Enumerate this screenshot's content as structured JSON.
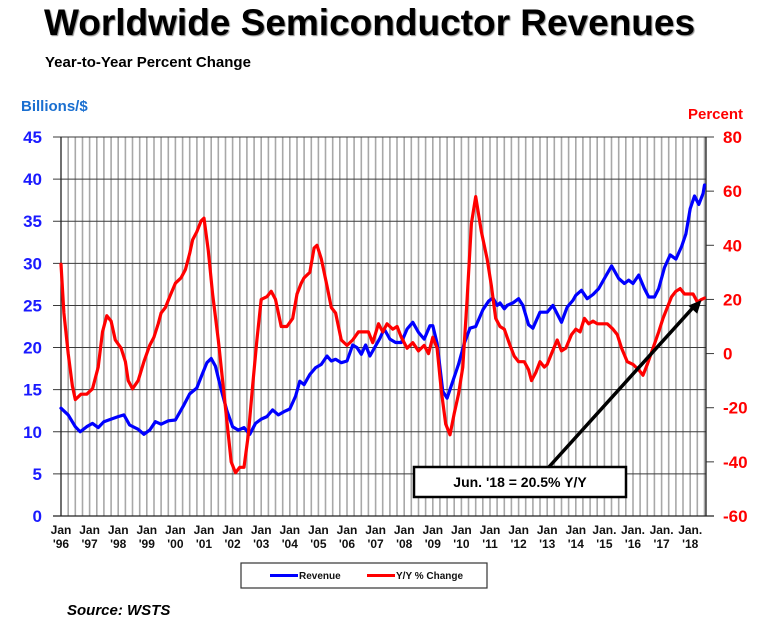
{
  "chart_data": {
    "type": "line",
    "title": "Worldwide Semiconductor Revenues",
    "subtitle": "Year-to-Year Percent Change",
    "ylabel_left": "Billions/$",
    "ylabel_right": "Percent",
    "ylim_left": [
      0,
      45
    ],
    "ylim_right": [
      -60,
      80
    ],
    "yticks_left": [
      "0",
      "5",
      "10",
      "15",
      "20",
      "25",
      "30",
      "35",
      "40",
      "45"
    ],
    "yticks_right": [
      "-60",
      "-40",
      "-20",
      "0",
      "20",
      "40",
      "60",
      "80"
    ],
    "xlim": [
      1996.0,
      2018.5
    ],
    "xticks": [
      {
        "line1": "Jan",
        "line2": "'96",
        "x": 1996
      },
      {
        "line1": "Jan",
        "line2": "'97",
        "x": 1997
      },
      {
        "line1": "Jan",
        "line2": "'98",
        "x": 1998
      },
      {
        "line1": "Jan",
        "line2": "'99",
        "x": 1999
      },
      {
        "line1": "Jan",
        "line2": "'00",
        "x": 2000
      },
      {
        "line1": "Jan",
        "line2": "'01",
        "x": 2001
      },
      {
        "line1": "Jan",
        "line2": "'02",
        "x": 2002
      },
      {
        "line1": "Jan",
        "line2": "'03",
        "x": 2003
      },
      {
        "line1": "Jan",
        "line2": "'04",
        "x": 2004
      },
      {
        "line1": "Jan",
        "line2": "'05",
        "x": 2005
      },
      {
        "line1": "Jan",
        "line2": "'06",
        "x": 2006
      },
      {
        "line1": "Jan",
        "line2": "'07",
        "x": 2007
      },
      {
        "line1": "Jan",
        "line2": "'08",
        "x": 2008
      },
      {
        "line1": "Jan",
        "line2": "'09",
        "x": 2009
      },
      {
        "line1": "Jan",
        "line2": "'10",
        "x": 2010
      },
      {
        "line1": "Jan",
        "line2": "'11",
        "x": 2011
      },
      {
        "line1": "Jan",
        "line2": "'12",
        "x": 2012
      },
      {
        "line1": "Jan",
        "line2": "'13",
        "x": 2013
      },
      {
        "line1": "Jan",
        "line2": "'14",
        "x": 2014
      },
      {
        "line1": "Jan.",
        "line2": "'15",
        "x": 2015
      },
      {
        "line1": "Jan.",
        "line2": "'16",
        "x": 2016
      },
      {
        "line1": "Jan.",
        "line2": "'17",
        "x": 2017
      },
      {
        "line1": "Jan.",
        "line2": "'18",
        "x": 2018
      }
    ],
    "grid": true,
    "legend_position": "bottom-center",
    "series": [
      {
        "name": "Revenue",
        "axis": "left",
        "color": "#0000ff",
        "points": [
          [
            1996.0,
            12.8
          ],
          [
            1996.25,
            12.0
          ],
          [
            1996.5,
            10.6
          ],
          [
            1996.67,
            10.0
          ],
          [
            1996.9,
            10.6
          ],
          [
            1997.1,
            11.0
          ],
          [
            1997.3,
            10.5
          ],
          [
            1997.5,
            11.2
          ],
          [
            1997.75,
            11.5
          ],
          [
            1998.0,
            11.8
          ],
          [
            1998.2,
            12.0
          ],
          [
            1998.4,
            10.8
          ],
          [
            1998.7,
            10.3
          ],
          [
            1998.9,
            9.7
          ],
          [
            1999.1,
            10.2
          ],
          [
            1999.3,
            11.2
          ],
          [
            1999.5,
            10.9
          ],
          [
            1999.75,
            11.3
          ],
          [
            2000.0,
            11.4
          ],
          [
            2000.3,
            13.2
          ],
          [
            2000.5,
            14.5
          ],
          [
            2000.75,
            15.2
          ],
          [
            2000.9,
            16.5
          ],
          [
            2001.1,
            18.2
          ],
          [
            2001.25,
            18.7
          ],
          [
            2001.4,
            17.8
          ],
          [
            2001.6,
            15.0
          ],
          [
            2001.8,
            12.5
          ],
          [
            2002.0,
            10.6
          ],
          [
            2002.2,
            10.2
          ],
          [
            2002.4,
            10.5
          ],
          [
            2002.6,
            9.7
          ],
          [
            2002.8,
            11.0
          ],
          [
            2003.0,
            11.5
          ],
          [
            2003.2,
            11.8
          ],
          [
            2003.4,
            12.6
          ],
          [
            2003.6,
            12.0
          ],
          [
            2003.8,
            12.4
          ],
          [
            2004.0,
            12.7
          ],
          [
            2004.2,
            14.2
          ],
          [
            2004.35,
            16.0
          ],
          [
            2004.5,
            15.6
          ],
          [
            2004.7,
            16.8
          ],
          [
            2004.9,
            17.6
          ],
          [
            2005.1,
            18.0
          ],
          [
            2005.3,
            19.0
          ],
          [
            2005.45,
            18.4
          ],
          [
            2005.6,
            18.6
          ],
          [
            2005.8,
            18.2
          ],
          [
            2006.0,
            18.4
          ],
          [
            2006.2,
            20.3
          ],
          [
            2006.35,
            20.0
          ],
          [
            2006.5,
            19.2
          ],
          [
            2006.65,
            20.3
          ],
          [
            2006.8,
            19.0
          ],
          [
            2007.0,
            20.2
          ],
          [
            2007.15,
            21.1
          ],
          [
            2007.3,
            22.2
          ],
          [
            2007.5,
            21.0
          ],
          [
            2007.7,
            20.6
          ],
          [
            2007.9,
            20.6
          ],
          [
            2008.1,
            22.2
          ],
          [
            2008.3,
            23.0
          ],
          [
            2008.5,
            21.8
          ],
          [
            2008.7,
            21.0
          ],
          [
            2008.9,
            22.6
          ],
          [
            2009.0,
            22.6
          ],
          [
            2009.15,
            20.5
          ],
          [
            2009.35,
            14.8
          ],
          [
            2009.5,
            14.0
          ],
          [
            2009.7,
            16.0
          ],
          [
            2009.9,
            18.0
          ],
          [
            2010.1,
            20.5
          ],
          [
            2010.3,
            22.3
          ],
          [
            2010.5,
            22.5
          ],
          [
            2010.75,
            24.5
          ],
          [
            2010.95,
            25.5
          ],
          [
            2011.1,
            25.9
          ],
          [
            2011.25,
            25.0
          ],
          [
            2011.35,
            25.3
          ],
          [
            2011.5,
            24.6
          ],
          [
            2011.6,
            25.0
          ],
          [
            2011.8,
            25.3
          ],
          [
            2012.0,
            25.8
          ],
          [
            2012.15,
            25.0
          ],
          [
            2012.35,
            22.7
          ],
          [
            2012.5,
            22.3
          ],
          [
            2012.75,
            24.2
          ],
          [
            2013.0,
            24.2
          ],
          [
            2013.2,
            25.0
          ],
          [
            2013.35,
            24.0
          ],
          [
            2013.5,
            23.0
          ],
          [
            2013.7,
            24.8
          ],
          [
            2013.9,
            25.6
          ],
          [
            2014.0,
            26.2
          ],
          [
            2014.2,
            26.8
          ],
          [
            2014.4,
            25.8
          ],
          [
            2014.6,
            26.3
          ],
          [
            2014.8,
            27.0
          ],
          [
            2015.0,
            28.2
          ],
          [
            2015.25,
            29.7
          ],
          [
            2015.5,
            28.2
          ],
          [
            2015.7,
            27.6
          ],
          [
            2015.85,
            28.0
          ],
          [
            2016.0,
            27.6
          ],
          [
            2016.2,
            28.6
          ],
          [
            2016.4,
            27.0
          ],
          [
            2016.55,
            26.0
          ],
          [
            2016.75,
            26.0
          ],
          [
            2016.9,
            27.0
          ],
          [
            2017.1,
            29.5
          ],
          [
            2017.3,
            31.0
          ],
          [
            2017.5,
            30.5
          ],
          [
            2017.7,
            32.0
          ],
          [
            2017.85,
            33.5
          ],
          [
            2018.0,
            36.5
          ],
          [
            2018.15,
            38.0
          ],
          [
            2018.3,
            37.0
          ],
          [
            2018.45,
            38.3
          ],
          [
            2018.5,
            39.3
          ]
        ]
      },
      {
        "name": "Y/Y % Change",
        "axis": "right",
        "color": "#ff0000",
        "points": [
          [
            1996.0,
            33
          ],
          [
            1996.1,
            15
          ],
          [
            1996.25,
            0
          ],
          [
            1996.4,
            -12
          ],
          [
            1996.5,
            -17
          ],
          [
            1996.7,
            -15
          ],
          [
            1996.9,
            -15
          ],
          [
            1997.1,
            -13
          ],
          [
            1997.3,
            -5
          ],
          [
            1997.45,
            8
          ],
          [
            1997.6,
            14
          ],
          [
            1997.75,
            12
          ],
          [
            1997.9,
            5
          ],
          [
            1998.1,
            2
          ],
          [
            1998.25,
            -3
          ],
          [
            1998.35,
            -10
          ],
          [
            1998.5,
            -13
          ],
          [
            1998.7,
            -10
          ],
          [
            1998.9,
            -3
          ],
          [
            1999.1,
            3
          ],
          [
            1999.25,
            6
          ],
          [
            1999.4,
            11
          ],
          [
            1999.5,
            15
          ],
          [
            1999.65,
            17
          ],
          [
            1999.8,
            21
          ],
          [
            2000.0,
            26
          ],
          [
            2000.2,
            28
          ],
          [
            2000.35,
            31
          ],
          [
            2000.5,
            37
          ],
          [
            2000.6,
            42
          ],
          [
            2000.75,
            45
          ],
          [
            2000.9,
            49
          ],
          [
            2001.0,
            50
          ],
          [
            2001.15,
            38
          ],
          [
            2001.3,
            22
          ],
          [
            2001.5,
            5
          ],
          [
            2001.65,
            -10
          ],
          [
            2001.8,
            -25
          ],
          [
            2001.95,
            -40
          ],
          [
            2002.1,
            -44
          ],
          [
            2002.25,
            -42
          ],
          [
            2002.4,
            -42
          ],
          [
            2002.55,
            -30
          ],
          [
            2002.7,
            -12
          ],
          [
            2002.85,
            5
          ],
          [
            2003.0,
            20
          ],
          [
            2003.2,
            21
          ],
          [
            2003.35,
            23
          ],
          [
            2003.5,
            20
          ],
          [
            2003.7,
            10
          ],
          [
            2003.9,
            10
          ],
          [
            2004.1,
            13
          ],
          [
            2004.25,
            22
          ],
          [
            2004.4,
            26
          ],
          [
            2004.5,
            28
          ],
          [
            2004.7,
            30
          ],
          [
            2004.85,
            39
          ],
          [
            2004.95,
            40
          ],
          [
            2005.1,
            35
          ],
          [
            2005.3,
            25
          ],
          [
            2005.45,
            17
          ],
          [
            2005.6,
            15
          ],
          [
            2005.8,
            5
          ],
          [
            2006.0,
            3
          ],
          [
            2006.2,
            5
          ],
          [
            2006.4,
            8
          ],
          [
            2006.6,
            8
          ],
          [
            2006.75,
            8
          ],
          [
            2006.9,
            4
          ],
          [
            2007.1,
            11
          ],
          [
            2007.25,
            8
          ],
          [
            2007.4,
            11
          ],
          [
            2007.6,
            9
          ],
          [
            2007.75,
            10
          ],
          [
            2007.9,
            6
          ],
          [
            2008.1,
            2
          ],
          [
            2008.3,
            4
          ],
          [
            2008.5,
            1
          ],
          [
            2008.7,
            3
          ],
          [
            2008.85,
            0
          ],
          [
            2009.0,
            6
          ],
          [
            2009.15,
            2
          ],
          [
            2009.3,
            -14
          ],
          [
            2009.45,
            -26
          ],
          [
            2009.6,
            -30
          ],
          [
            2009.75,
            -22
          ],
          [
            2009.9,
            -15
          ],
          [
            2010.05,
            -5
          ],
          [
            2010.2,
            20
          ],
          [
            2010.35,
            48
          ],
          [
            2010.5,
            58
          ],
          [
            2010.7,
            45
          ],
          [
            2010.9,
            35
          ],
          [
            2011.05,
            25
          ],
          [
            2011.2,
            13
          ],
          [
            2011.35,
            10
          ],
          [
            2011.5,
            9
          ],
          [
            2011.7,
            3
          ],
          [
            2011.85,
            -1
          ],
          [
            2012.0,
            -3
          ],
          [
            2012.2,
            -3
          ],
          [
            2012.35,
            -6
          ],
          [
            2012.45,
            -10
          ],
          [
            2012.6,
            -7
          ],
          [
            2012.75,
            -3
          ],
          [
            2012.9,
            -5
          ],
          [
            2013.0,
            -4
          ],
          [
            2013.15,
            0
          ],
          [
            2013.35,
            5
          ],
          [
            2013.5,
            1
          ],
          [
            2013.65,
            2
          ],
          [
            2013.85,
            7
          ],
          [
            2014.0,
            9
          ],
          [
            2014.15,
            8
          ],
          [
            2014.3,
            13
          ],
          [
            2014.45,
            11
          ],
          [
            2014.6,
            12
          ],
          [
            2014.75,
            11
          ],
          [
            2014.9,
            11
          ],
          [
            2015.1,
            11
          ],
          [
            2015.3,
            9
          ],
          [
            2015.45,
            7
          ],
          [
            2015.6,
            2
          ],
          [
            2015.8,
            -3
          ],
          [
            2016.0,
            -4
          ],
          [
            2016.2,
            -6
          ],
          [
            2016.35,
            -8
          ],
          [
            2016.5,
            -4
          ],
          [
            2016.7,
            2
          ],
          [
            2016.9,
            8
          ],
          [
            2017.05,
            13
          ],
          [
            2017.2,
            17
          ],
          [
            2017.35,
            21
          ],
          [
            2017.5,
            23
          ],
          [
            2017.65,
            24
          ],
          [
            2017.8,
            22
          ],
          [
            2017.95,
            22
          ],
          [
            2018.1,
            22
          ],
          [
            2018.25,
            19
          ],
          [
            2018.4,
            20
          ],
          [
            2018.5,
            20.5
          ]
        ]
      }
    ],
    "annotation": {
      "text": "Jun. '18 = 20.5% Y/Y",
      "target_x": 2018.5,
      "target_y_right": 20.5
    }
  },
  "legend": {
    "revenue_label": "Revenue",
    "yoy_label": "Y/Y % Change"
  },
  "source": "Source: WSTS"
}
